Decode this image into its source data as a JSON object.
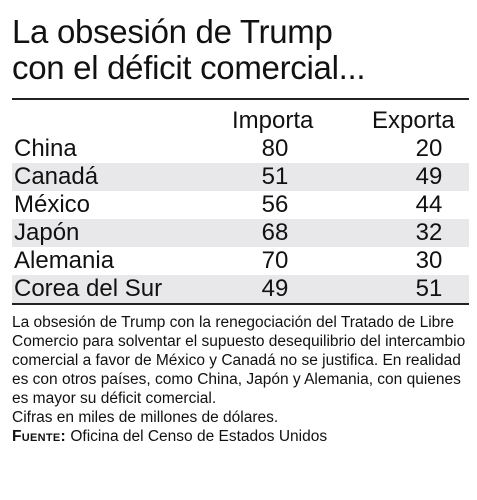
{
  "title": {
    "line1": "La obsesión de Trump",
    "line2": "con el déficit comercial..."
  },
  "chart_data": {
    "type": "table",
    "columns": [
      "Importa",
      "Exporta"
    ],
    "rows": [
      {
        "country": "China",
        "importa": 80,
        "exporta": 20
      },
      {
        "country": "Canadá",
        "importa": 51,
        "exporta": 49
      },
      {
        "country": "México",
        "importa": 56,
        "exporta": 44
      },
      {
        "country": "Japón",
        "importa": 68,
        "exporta": 32
      },
      {
        "country": "Alemania",
        "importa": 70,
        "exporta": 30
      },
      {
        "country": "Corea del Sur",
        "importa": 49,
        "exporta": 51
      }
    ],
    "alternate_row_color": "#e8e8ea"
  },
  "note": {
    "body": "La obsesión de Trump con la renegociación  del Tratado de Libre Comercio para solventar el supuesto desequilibrio del intercambio comercial a favor de México y Canadá no se justifica. En realidad es con otros países, como China, Japón y Alemania, con quienes es mayor su déficit comercial.",
    "units": "Cifras en miles de millones de dólares.",
    "source_label": "Fuente:",
    "source_text": "Oficina del Censo de Estados Unidos"
  }
}
